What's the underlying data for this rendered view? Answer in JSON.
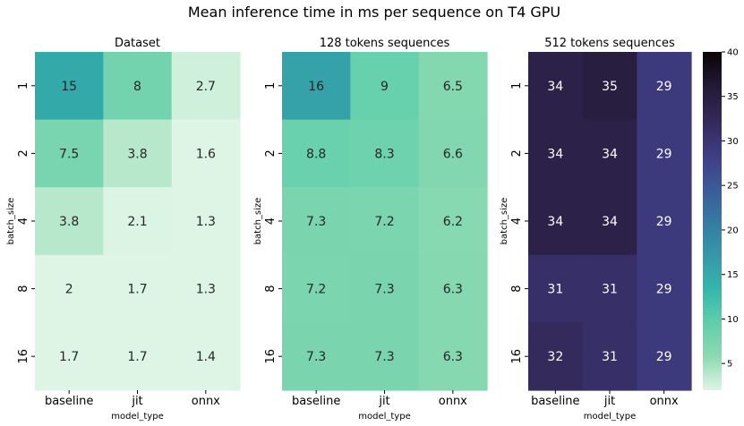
{
  "title": "Mean inference time in ms per sequence on T4 GPU",
  "colorbar": {
    "min": 2,
    "max": 40,
    "ticks": [
      "5",
      "10",
      "15",
      "20",
      "25",
      "30",
      "35",
      "40"
    ]
  },
  "chart_data": [
    {
      "type": "heatmap",
      "title": "Dataset",
      "xlabel": "model_type",
      "ylabel": "batch_size",
      "x": [
        "baseline",
        "jit",
        "onnx"
      ],
      "y": [
        "1",
        "2",
        "4",
        "8",
        "16"
      ],
      "values": [
        [
          15,
          8,
          2.7
        ],
        [
          7.5,
          3.8,
          1.6
        ],
        [
          3.8,
          2.1,
          1.3
        ],
        [
          2,
          1.7,
          1.3
        ],
        [
          1.7,
          1.7,
          1.4
        ]
      ]
    },
    {
      "type": "heatmap",
      "title": "128 tokens sequences",
      "xlabel": "model_type",
      "ylabel": "batch_size",
      "x": [
        "baseline",
        "jit",
        "onnx"
      ],
      "y": [
        "1",
        "2",
        "4",
        "8",
        "16"
      ],
      "values": [
        [
          16,
          9,
          6.5
        ],
        [
          8.8,
          8.3,
          6.6
        ],
        [
          7.3,
          7.2,
          6.2
        ],
        [
          7.2,
          7.3,
          6.3
        ],
        [
          7.3,
          7.3,
          6.3
        ]
      ]
    },
    {
      "type": "heatmap",
      "title": "512 tokens sequences",
      "xlabel": "model_type",
      "ylabel": "batch_size",
      "x": [
        "baseline",
        "jit",
        "onnx"
      ],
      "y": [
        "1",
        "2",
        "4",
        "8",
        "16"
      ],
      "values": [
        [
          34,
          35,
          29
        ],
        [
          34,
          34,
          29
        ],
        [
          34,
          34,
          29
        ],
        [
          31,
          31,
          29
        ],
        [
          32,
          31,
          29
        ]
      ]
    }
  ]
}
